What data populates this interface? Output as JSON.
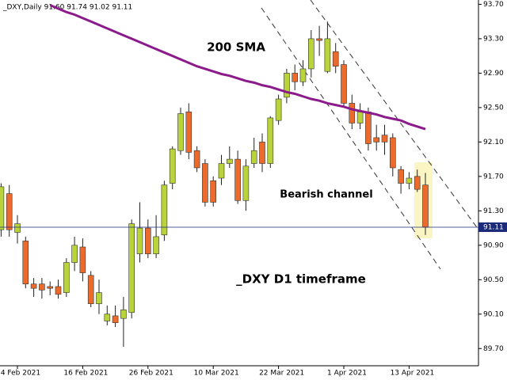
{
  "chart_data": {
    "type": "candlestick",
    "header": "_DXY,Daily  91.60 91.74 91.02 91.11",
    "categories": [
      null,
      null,
      "4 Feb 2021",
      null,
      null,
      null,
      null,
      null,
      null,
      null,
      "16 Feb 2021",
      null,
      null,
      null,
      null,
      null,
      null,
      null,
      "26 Feb 2021",
      null,
      null,
      null,
      null,
      null,
      null,
      null,
      "10 Mar 2021",
      null,
      null,
      null,
      null,
      null,
      null,
      null,
      "22 Mar 2021",
      null,
      null,
      null,
      null,
      null,
      null,
      null,
      "1 Apr 2021",
      null,
      null,
      null,
      null,
      null,
      null,
      null,
      "13 Apr 2021",
      null,
      null
    ],
    "open": [
      91.08,
      91.5,
      91.05,
      90.95,
      90.45,
      90.45,
      90.42,
      90.42,
      90.35,
      90.7,
      90.88,
      90.55,
      90.22,
      90.02,
      90.08,
      90.05,
      90.12,
      90.8,
      91.1,
      90.8,
      91.02,
      91.62,
      92.0,
      92.45,
      92.0,
      91.85,
      91.65,
      91.68,
      91.85,
      91.9,
      91.42,
      91.85,
      92.1,
      91.85,
      92.35,
      92.62,
      92.9,
      92.8,
      92.95,
      93.3,
      92.92,
      93.15,
      93.0,
      92.55,
      92.32,
      92.45,
      92.15,
      92.18,
      92.15,
      91.78,
      91.62,
      91.7,
      91.6
    ],
    "high": [
      91.62,
      91.6,
      91.25,
      91.0,
      90.52,
      90.52,
      90.48,
      90.5,
      90.75,
      91.0,
      90.98,
      90.6,
      90.5,
      90.2,
      90.2,
      90.3,
      91.2,
      91.4,
      91.2,
      91.25,
      91.65,
      92.05,
      92.5,
      92.55,
      92.05,
      91.9,
      91.7,
      91.95,
      92.05,
      92.0,
      91.9,
      92.15,
      92.2,
      92.4,
      92.65,
      92.95,
      93.0,
      93.05,
      93.4,
      93.45,
      93.5,
      93.25,
      93.05,
      92.65,
      92.55,
      92.5,
      92.3,
      92.3,
      92.2,
      91.82,
      91.75,
      91.78,
      91.74
    ],
    "low": [
      91.0,
      91.0,
      90.92,
      90.4,
      90.3,
      90.28,
      90.32,
      90.28,
      90.3,
      90.6,
      90.48,
      90.18,
      90.1,
      89.97,
      89.95,
      89.72,
      90.05,
      90.7,
      90.75,
      90.75,
      90.95,
      91.55,
      91.95,
      91.9,
      91.75,
      91.35,
      91.35,
      91.6,
      91.8,
      91.38,
      91.3,
      91.8,
      91.75,
      91.8,
      92.3,
      92.55,
      92.7,
      92.75,
      92.85,
      93.1,
      92.9,
      92.9,
      92.5,
      92.25,
      92.25,
      92.0,
      92.0,
      91.95,
      91.7,
      91.5,
      91.55,
      91.52,
      91.02
    ],
    "close": [
      91.58,
      91.08,
      91.15,
      90.45,
      90.4,
      90.38,
      90.4,
      90.33,
      90.7,
      90.9,
      90.58,
      90.22,
      90.35,
      90.1,
      90.0,
      90.15,
      91.15,
      91.1,
      90.8,
      91.0,
      91.6,
      92.02,
      92.43,
      91.98,
      91.8,
      91.4,
      91.4,
      91.85,
      91.9,
      91.42,
      91.82,
      92.0,
      91.85,
      92.38,
      92.6,
      92.9,
      92.8,
      92.95,
      93.3,
      93.28,
      93.3,
      92.98,
      92.55,
      92.32,
      92.45,
      92.08,
      92.1,
      92.1,
      91.8,
      91.62,
      91.68,
      91.55,
      91.11
    ],
    "up_color": "#b9d33b",
    "down_color": "#ec6a2b",
    "sma": {
      "label": "200 SMA",
      "color": "#8b1a8b",
      "values": [
        null,
        null,
        null,
        null,
        null,
        null,
        93.69,
        93.65,
        93.61,
        93.58,
        93.54,
        93.5,
        93.46,
        93.42,
        93.38,
        93.34,
        93.3,
        93.26,
        93.22,
        93.18,
        93.14,
        93.1,
        93.06,
        93.02,
        92.98,
        92.95,
        92.92,
        92.89,
        92.87,
        92.84,
        92.81,
        92.79,
        92.76,
        92.74,
        92.71,
        92.68,
        92.66,
        92.63,
        92.6,
        92.58,
        92.55,
        92.53,
        92.51,
        92.48,
        92.46,
        92.44,
        92.42,
        92.39,
        92.37,
        92.35,
        92.31,
        92.28,
        92.25
      ]
    },
    "annotations": [
      "Bearish channel",
      "_DXY D1 timeframe"
    ],
    "last_price": 91.11,
    "ylim": [
      89.5,
      93.75
    ],
    "yticks": [
      {
        "value": 89.7,
        "label": "89.70"
      },
      {
        "value": 90.1,
        "label": "90.10"
      },
      {
        "value": 90.5,
        "label": "90.50"
      },
      {
        "value": 90.9,
        "label": "90.90"
      },
      {
        "value": 91.3,
        "label": "91.30"
      },
      {
        "value": 91.7,
        "label": "91.70"
      },
      {
        "value": 92.1,
        "label": "92.10"
      },
      {
        "value": 92.5,
        "label": "92.50"
      },
      {
        "value": 92.9,
        "label": "92.90"
      },
      {
        "value": 93.3,
        "label": "93.30"
      },
      {
        "value": 93.7,
        "label": "93.70"
      }
    ]
  }
}
